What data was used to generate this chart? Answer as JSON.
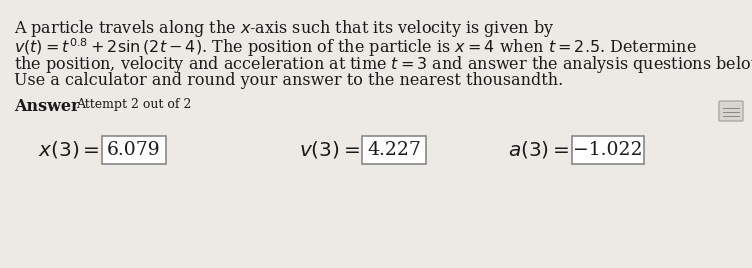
{
  "background_color": "#edeae5",
  "line1": "A particle travels along the $x$-axis such that its velocity is given by",
  "line2": "$v(t) = t^{0.8} + 2\\sin{(2t - 4)}$. The position of the particle is $x = 4$ when $t = 2.5$. Determine",
  "line3": "the position, velocity and acceleration at time $t = 3$ and answer the analysis questions below.",
  "line4": "Use a calculator and round your answer to the nearest thousandth.",
  "answer_label": "Answer",
  "attempt_label": "Attempt 2 out of 2",
  "x_label": "$x(3) =$",
  "x_value": "6.079",
  "v_label": "$v(3) =$",
  "v_value": "4.227",
  "a_label": "$a(3) =$",
  "a_value": "−1.022",
  "box_facecolor": "#ffffff",
  "box_edgecolor": "#888888",
  "text_color": "#1a1a1a",
  "body_fontsize": 11.5,
  "answer_bold_fontsize": 11.5,
  "attempt_fontsize": 9,
  "eq_label_fontsize": 14.5,
  "eq_value_fontsize": 13.5
}
